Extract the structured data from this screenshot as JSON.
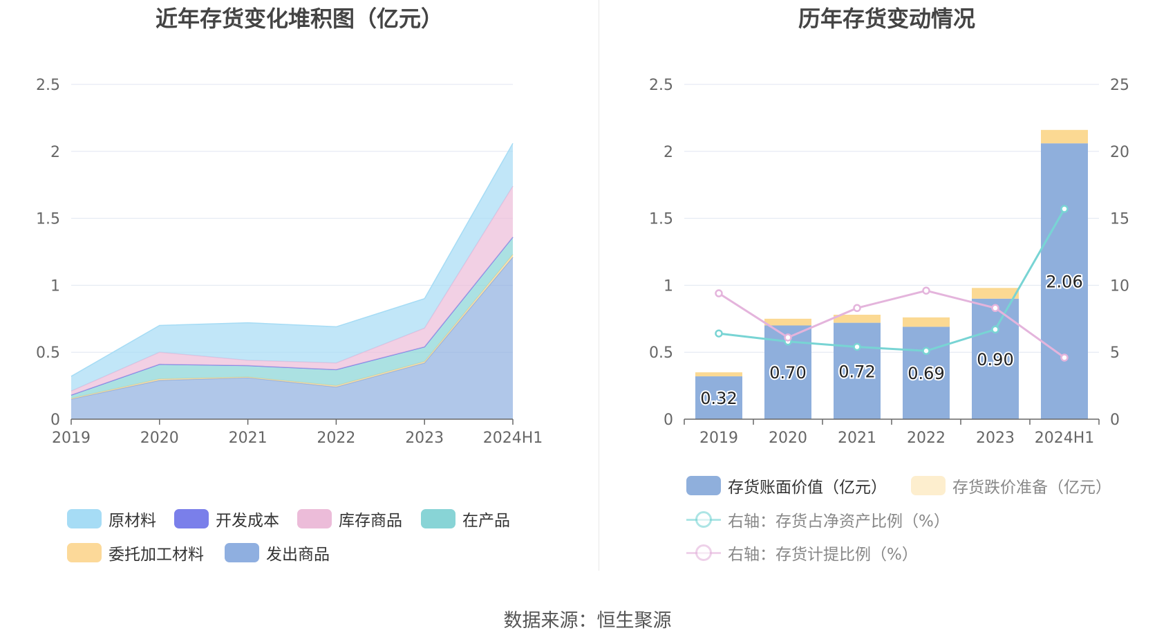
{
  "left_title": "近年存货变化堆积图（亿元）",
  "right_title": "历年存货变动情况",
  "source": "数据来源：恒生聚源",
  "colors": {
    "raw_material": "#a6dcf5",
    "dev_cost": "#7a7fea",
    "stock_goods": "#ecbcd9",
    "wip": "#88d4d6",
    "consign": "#fcd999",
    "shipped": "#8fafe0",
    "book_value": "#8fafdc",
    "impairment": "#fbd993",
    "ratio_net": "#78d4d4",
    "ratio_prov": "#e4b4dc"
  },
  "left_legend": [
    {
      "key": "raw_material",
      "label": "原材料"
    },
    {
      "key": "dev_cost",
      "label": "开发成本"
    },
    {
      "key": "stock_goods",
      "label": "库存商品"
    },
    {
      "key": "wip",
      "label": "在产品"
    },
    {
      "key": "consign",
      "label": "委托加工材料"
    },
    {
      "key": "shipped",
      "label": "发出商品"
    }
  ],
  "right_legend": [
    {
      "key": "book_value",
      "label": "存货账面价值（亿元）",
      "kind": "bar"
    },
    {
      "key": "impairment",
      "label": "存货跌价准备（亿元）",
      "kind": "bar"
    },
    {
      "key": "ratio_net",
      "label": "右轴：存货占净资产比例（%）",
      "kind": "line"
    },
    {
      "key": "ratio_prov",
      "label": "右轴：存货计提比例（%）",
      "kind": "line"
    }
  ],
  "chart_data": [
    {
      "type": "area",
      "stacked": true,
      "title": "近年存货变化堆积图（亿元）",
      "categories": [
        "2019",
        "2020",
        "2021",
        "2022",
        "2023",
        "2024H1"
      ],
      "ylim": [
        0,
        2.5
      ],
      "yticks": [
        "0",
        "0.5",
        "1",
        "1.5",
        "2",
        "2.5"
      ],
      "series": [
        {
          "name": "发出商品",
          "key": "shipped",
          "values": [
            0.15,
            0.29,
            0.31,
            0.24,
            0.42,
            1.21
          ]
        },
        {
          "name": "委托加工材料",
          "key": "consign",
          "values": [
            0.005,
            0.01,
            0.005,
            0.01,
            0.01,
            0.02
          ]
        },
        {
          "name": "在产品",
          "key": "wip",
          "values": [
            0.025,
            0.11,
            0.085,
            0.12,
            0.11,
            0.13
          ]
        },
        {
          "name": "开发成本",
          "key": "dev_cost",
          "values": [
            0,
            0,
            0,
            0,
            0,
            0
          ]
        },
        {
          "name": "库存商品",
          "key": "stock_goods",
          "values": [
            0.03,
            0.09,
            0.04,
            0.05,
            0.14,
            0.38
          ]
        },
        {
          "name": "原材料",
          "key": "raw_material",
          "values": [
            0.11,
            0.2,
            0.28,
            0.27,
            0.22,
            0.32
          ]
        }
      ],
      "grid": true
    },
    {
      "type": "bar",
      "stacked": true,
      "title": "历年存货变动情况",
      "categories": [
        "2019",
        "2020",
        "2021",
        "2022",
        "2023",
        "2024H1"
      ],
      "ylim": [
        0,
        2.5
      ],
      "yticks": [
        "0",
        "0.5",
        "1",
        "1.5",
        "2",
        "2.5"
      ],
      "y2lim": [
        0,
        25
      ],
      "y2ticks": [
        "0",
        "5",
        "10",
        "15",
        "20",
        "25"
      ],
      "series": [
        {
          "name": "存货账面价值（亿元）",
          "key": "book_value",
          "values": [
            0.32,
            0.7,
            0.72,
            0.69,
            0.9,
            2.06
          ],
          "labels": [
            "0.32",
            "0.70",
            "0.72",
            "0.69",
            "0.90",
            "2.06"
          ]
        },
        {
          "name": "存货跌价准备（亿元）",
          "key": "impairment",
          "values": [
            0.03,
            0.05,
            0.06,
            0.07,
            0.08,
            0.1
          ]
        }
      ],
      "lines": [
        {
          "name": "右轴：存货占净资产比例（%）",
          "key": "ratio_net",
          "axis": "right",
          "values": [
            6.4,
            5.8,
            5.4,
            5.1,
            6.7,
            15.7
          ]
        },
        {
          "name": "右轴：存货计提比例（%）",
          "key": "ratio_prov",
          "axis": "right",
          "values": [
            9.4,
            6.1,
            8.3,
            9.6,
            8.3,
            4.6
          ]
        }
      ],
      "grid": true
    }
  ]
}
